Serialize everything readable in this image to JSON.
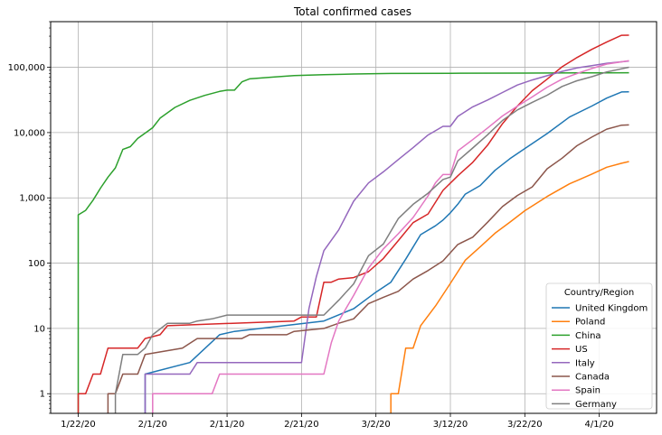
{
  "chart_data": {
    "type": "line",
    "title": "Total confirmed cases",
    "xlabel": "",
    "ylabel": "",
    "yscale": "log",
    "ylim": [
      0.5,
      500000
    ],
    "grid": true,
    "x_start": "2020-01-22",
    "x_end": "2020-04-05",
    "x_ticks": [
      {
        "date": "2020-01-22",
        "label": "1/22/20"
      },
      {
        "date": "2020-02-01",
        "label": "2/1/20"
      },
      {
        "date": "2020-02-11",
        "label": "2/11/20"
      },
      {
        "date": "2020-02-21",
        "label": "2/21/20"
      },
      {
        "date": "2020-03-02",
        "label": "3/2/20"
      },
      {
        "date": "2020-03-12",
        "label": "3/12/20"
      },
      {
        "date": "2020-03-22",
        "label": "3/22/20"
      },
      {
        "date": "2020-04-01",
        "label": "4/1/20"
      }
    ],
    "y_ticks": [
      {
        "value": 1,
        "label": "1"
      },
      {
        "value": 10,
        "label": "10"
      },
      {
        "value": 100,
        "label": "100"
      },
      {
        "value": 1000,
        "label": "1,000"
      },
      {
        "value": 10000,
        "label": "10,000"
      },
      {
        "value": 100000,
        "label": "100,000"
      }
    ],
    "legend": {
      "title": "Country/Region",
      "position": "lower-right"
    },
    "series": [
      {
        "name": "United Kingdom",
        "color": "#1f77b4",
        "points": [
          [
            "2020-01-31",
            2
          ],
          [
            "2020-02-06",
            3
          ],
          [
            "2020-02-10",
            8
          ],
          [
            "2020-02-12",
            9
          ],
          [
            "2020-02-24",
            13
          ],
          [
            "2020-02-28",
            20
          ],
          [
            "2020-03-02",
            36
          ],
          [
            "2020-03-04",
            51
          ],
          [
            "2020-03-06",
            115
          ],
          [
            "2020-03-08",
            273
          ],
          [
            "2020-03-10",
            373
          ],
          [
            "2020-03-11",
            456
          ],
          [
            "2020-03-12",
            590
          ],
          [
            "2020-03-13",
            798
          ],
          [
            "2020-03-14",
            1140
          ],
          [
            "2020-03-16",
            1543
          ],
          [
            "2020-03-18",
            2642
          ],
          [
            "2020-03-20",
            3983
          ],
          [
            "2020-03-22",
            5683
          ],
          [
            "2020-03-25",
            9640
          ],
          [
            "2020-03-28",
            17312
          ],
          [
            "2020-03-31",
            25481
          ],
          [
            "2020-04-02",
            33718
          ],
          [
            "2020-04-04",
            41903
          ],
          [
            "2020-04-05",
            42000
          ]
        ]
      },
      {
        "name": "Poland",
        "color": "#ff7f0e",
        "points": [
          [
            "2020-03-04",
            1
          ],
          [
            "2020-03-05",
            1
          ],
          [
            "2020-03-06",
            5
          ],
          [
            "2020-03-07",
            5
          ],
          [
            "2020-03-08",
            11
          ],
          [
            "2020-03-10",
            22
          ],
          [
            "2020-03-12",
            49
          ],
          [
            "2020-03-14",
            111
          ],
          [
            "2020-03-16",
            177
          ],
          [
            "2020-03-18",
            287
          ],
          [
            "2020-03-20",
            425
          ],
          [
            "2020-03-22",
            634
          ],
          [
            "2020-03-25",
            1051
          ],
          [
            "2020-03-28",
            1638
          ],
          [
            "2020-03-31",
            2311
          ],
          [
            "2020-04-02",
            2946
          ],
          [
            "2020-04-04",
            3383
          ],
          [
            "2020-04-05",
            3600
          ]
        ]
      },
      {
        "name": "China",
        "color": "#2ca02c",
        "points": [
          [
            "2020-01-22",
            548
          ],
          [
            "2020-01-23",
            643
          ],
          [
            "2020-01-24",
            920
          ],
          [
            "2020-01-25",
            1406
          ],
          [
            "2020-01-26",
            2075
          ],
          [
            "2020-01-27",
            2877
          ],
          [
            "2020-01-28",
            5509
          ],
          [
            "2020-01-29",
            6087
          ],
          [
            "2020-01-30",
            8141
          ],
          [
            "2020-01-31",
            9802
          ],
          [
            "2020-02-01",
            11891
          ],
          [
            "2020-02-02",
            16630
          ],
          [
            "2020-02-04",
            24324
          ],
          [
            "2020-02-06",
            31161
          ],
          [
            "2020-02-08",
            37120
          ],
          [
            "2020-02-10",
            42638
          ],
          [
            "2020-02-11",
            44653
          ],
          [
            "2020-02-12",
            44700
          ],
          [
            "2020-02-13",
            59895
          ],
          [
            "2020-02-14",
            66358
          ],
          [
            "2020-02-17",
            70513
          ],
          [
            "2020-02-20",
            74546
          ],
          [
            "2020-02-24",
            77241
          ],
          [
            "2020-02-28",
            78961
          ],
          [
            "2020-03-04",
            80411
          ],
          [
            "2020-03-12",
            80932
          ],
          [
            "2020-03-22",
            81435
          ],
          [
            "2020-04-01",
            82361
          ],
          [
            "2020-04-05",
            82600
          ]
        ]
      },
      {
        "name": "US",
        "color": "#d62728",
        "points": [
          [
            "2020-01-22",
            1
          ],
          [
            "2020-01-23",
            1
          ],
          [
            "2020-01-24",
            2
          ],
          [
            "2020-01-25",
            2
          ],
          [
            "2020-01-26",
            5
          ],
          [
            "2020-01-30",
            5
          ],
          [
            "2020-01-31",
            7
          ],
          [
            "2020-02-02",
            8
          ],
          [
            "2020-02-03",
            11
          ],
          [
            "2020-02-20",
            13
          ],
          [
            "2020-02-21",
            15
          ],
          [
            "2020-02-23",
            15
          ],
          [
            "2020-02-24",
            51
          ],
          [
            "2020-02-25",
            51
          ],
          [
            "2020-02-26",
            57
          ],
          [
            "2020-02-28",
            60
          ],
          [
            "2020-03-01",
            74
          ],
          [
            "2020-03-03",
            118
          ],
          [
            "2020-03-05",
            221
          ],
          [
            "2020-03-07",
            417
          ],
          [
            "2020-03-09",
            566
          ],
          [
            "2020-03-11",
            1301
          ],
          [
            "2020-03-13",
            2179
          ],
          [
            "2020-03-15",
            3499
          ],
          [
            "2020-03-17",
            6421
          ],
          [
            "2020-03-19",
            13677
          ],
          [
            "2020-03-21",
            25489
          ],
          [
            "2020-03-23",
            43847
          ],
          [
            "2020-03-25",
            65778
          ],
          [
            "2020-03-27",
            101657
          ],
          [
            "2020-03-29",
            140886
          ],
          [
            "2020-03-31",
            188172
          ],
          [
            "2020-04-02",
            243453
          ],
          [
            "2020-04-04",
            308850
          ],
          [
            "2020-04-05",
            310000
          ]
        ]
      },
      {
        "name": "Italy",
        "color": "#9467bd",
        "points": [
          [
            "2020-01-31",
            2
          ],
          [
            "2020-02-06",
            2
          ],
          [
            "2020-02-07",
            3
          ],
          [
            "2020-02-21",
            3
          ],
          [
            "2020-02-22",
            20
          ],
          [
            "2020-02-23",
            62
          ],
          [
            "2020-02-24",
            155
          ],
          [
            "2020-02-26",
            322
          ],
          [
            "2020-02-28",
            888
          ],
          [
            "2020-03-01",
            1694
          ],
          [
            "2020-03-03",
            2502
          ],
          [
            "2020-03-05",
            3858
          ],
          [
            "2020-03-07",
            5883
          ],
          [
            "2020-03-09",
            9172
          ],
          [
            "2020-03-11",
            12462
          ],
          [
            "2020-03-12",
            12462
          ],
          [
            "2020-03-13",
            17660
          ],
          [
            "2020-03-15",
            24747
          ],
          [
            "2020-03-17",
            31506
          ],
          [
            "2020-03-19",
            41035
          ],
          [
            "2020-03-21",
            53578
          ],
          [
            "2020-03-23",
            63927
          ],
          [
            "2020-03-25",
            74386
          ],
          [
            "2020-03-27",
            86498
          ],
          [
            "2020-03-29",
            97689
          ],
          [
            "2020-03-31",
            105792
          ],
          [
            "2020-04-02",
            115242
          ],
          [
            "2020-04-05",
            124632
          ]
        ]
      },
      {
        "name": "Canada",
        "color": "#8c564b",
        "points": [
          [
            "2020-01-26",
            1
          ],
          [
            "2020-01-27",
            1
          ],
          [
            "2020-01-28",
            2
          ],
          [
            "2020-01-30",
            2
          ],
          [
            "2020-01-31",
            4
          ],
          [
            "2020-02-05",
            5
          ],
          [
            "2020-02-07",
            7
          ],
          [
            "2020-02-13",
            7
          ],
          [
            "2020-02-14",
            8
          ],
          [
            "2020-02-19",
            8
          ],
          [
            "2020-02-20",
            9
          ],
          [
            "2020-02-24",
            10
          ],
          [
            "2020-02-26",
            12
          ],
          [
            "2020-02-28",
            14
          ],
          [
            "2020-03-01",
            24
          ],
          [
            "2020-03-03",
            30
          ],
          [
            "2020-03-05",
            37
          ],
          [
            "2020-03-07",
            57
          ],
          [
            "2020-03-09",
            77
          ],
          [
            "2020-03-11",
            108
          ],
          [
            "2020-03-13",
            193
          ],
          [
            "2020-03-15",
            250
          ],
          [
            "2020-03-17",
            424
          ],
          [
            "2020-03-19",
            736
          ],
          [
            "2020-03-21",
            1087
          ],
          [
            "2020-03-23",
            1471
          ],
          [
            "2020-03-25",
            2792
          ],
          [
            "2020-03-27",
            4043
          ],
          [
            "2020-03-29",
            6280
          ],
          [
            "2020-03-31",
            8527
          ],
          [
            "2020-04-02",
            11284
          ],
          [
            "2020-04-04",
            12978
          ],
          [
            "2020-04-05",
            13100
          ]
        ]
      },
      {
        "name": "Spain",
        "color": "#e377c2",
        "points": [
          [
            "2020-02-01",
            1
          ],
          [
            "2020-02-09",
            1
          ],
          [
            "2020-02-10",
            2
          ],
          [
            "2020-02-24",
            2
          ],
          [
            "2020-02-25",
            6
          ],
          [
            "2020-02-26",
            13
          ],
          [
            "2020-02-28",
            32
          ],
          [
            "2020-03-01",
            84
          ],
          [
            "2020-03-03",
            165
          ],
          [
            "2020-03-05",
            282
          ],
          [
            "2020-03-07",
            500
          ],
          [
            "2020-03-09",
            1073
          ],
          [
            "2020-03-10",
            1695
          ],
          [
            "2020-03-11",
            2277
          ],
          [
            "2020-03-12",
            2277
          ],
          [
            "2020-03-13",
            5232
          ],
          [
            "2020-03-15",
            7798
          ],
          [
            "2020-03-17",
            11748
          ],
          [
            "2020-03-19",
            17963
          ],
          [
            "2020-03-21",
            25374
          ],
          [
            "2020-03-23",
            35136
          ],
          [
            "2020-03-25",
            49515
          ],
          [
            "2020-03-27",
            65719
          ],
          [
            "2020-03-29",
            80110
          ],
          [
            "2020-03-31",
            95923
          ],
          [
            "2020-04-02",
            112065
          ],
          [
            "2020-04-05",
            126168
          ]
        ]
      },
      {
        "name": "Germany",
        "color": "#7f7f7f",
        "points": [
          [
            "2020-01-27",
            1
          ],
          [
            "2020-01-28",
            4
          ],
          [
            "2020-01-30",
            4
          ],
          [
            "2020-01-31",
            5
          ],
          [
            "2020-02-01",
            8
          ],
          [
            "2020-02-03",
            12
          ],
          [
            "2020-02-06",
            12
          ],
          [
            "2020-02-07",
            13
          ],
          [
            "2020-02-09",
            14
          ],
          [
            "2020-02-11",
            16
          ],
          [
            "2020-02-24",
            16
          ],
          [
            "2020-02-26",
            27
          ],
          [
            "2020-02-28",
            48
          ],
          [
            "2020-03-01",
            130
          ],
          [
            "2020-03-03",
            196
          ],
          [
            "2020-03-05",
            482
          ],
          [
            "2020-03-07",
            795
          ],
          [
            "2020-03-09",
            1176
          ],
          [
            "2020-03-11",
            1908
          ],
          [
            "2020-03-12",
            2078
          ],
          [
            "2020-03-13",
            3675
          ],
          [
            "2020-03-15",
            5795
          ],
          [
            "2020-03-17",
            9257
          ],
          [
            "2020-03-19",
            15320
          ],
          [
            "2020-03-21",
            22213
          ],
          [
            "2020-03-23",
            29056
          ],
          [
            "2020-03-25",
            37323
          ],
          [
            "2020-03-27",
            50871
          ],
          [
            "2020-03-29",
            62095
          ],
          [
            "2020-03-31",
            71808
          ],
          [
            "2020-04-02",
            84794
          ],
          [
            "2020-04-05",
            100123
          ]
        ]
      }
    ]
  }
}
